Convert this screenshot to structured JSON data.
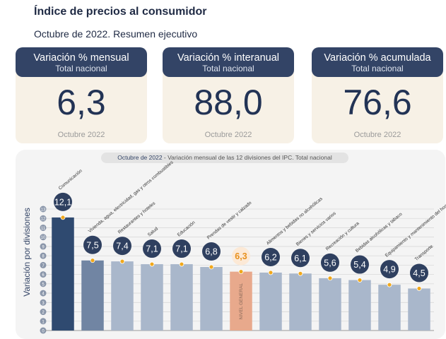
{
  "header": {
    "title": "Índice de precios al consumidor",
    "subtitle": "Octubre de 2022. Resumen ejecutivo"
  },
  "cards": [
    {
      "title": "Variación % mensual",
      "scope": "Total nacional",
      "value": "6,3",
      "period": "Octubre 2022"
    },
    {
      "title": "Variación % interanual",
      "scope": "Total nacional",
      "value": "88,0",
      "period": "Octubre 2022"
    },
    {
      "title": "Variación % acumulada",
      "scope": "Total nacional",
      "value": "76,6",
      "period": "Octubre 2022"
    }
  ],
  "colors": {
    "header_navy": "#334466",
    "bar_highlight": "#2f4a70",
    "bar_default": "#a9b7cb",
    "bar_general": "#e8a98c",
    "marker": "#f0a81c"
  },
  "chart_data": {
    "type": "bar",
    "title_prefix": "Octubre de 2022",
    "title": "Variación mensual de las 12 divisiones del IPC. Total nacional",
    "ylabel": "Variación por divisiones",
    "ylim": [
      0,
      13
    ],
    "yticks": [
      "0",
      "1",
      "2",
      "3",
      "4",
      "5",
      "6",
      "7",
      "8",
      "9",
      "10",
      "11",
      "12",
      "13"
    ],
    "grid": true,
    "categories": [
      "Comunicación",
      "Vivienda, agua, electricidad, gas y otros combustibles",
      "Restaurantes y hoteles",
      "Salud",
      "Educación",
      "Prendas de vestir y calzado",
      "NIVEL GENERAL",
      "Alimentos y bebidas no alcohólicas",
      "Bienes y servicios varios",
      "Recreación y cultura",
      "Bebidas alcohólicas y tabaco",
      "Equipamiento y mantenimiento del hogar",
      "Transporte"
    ],
    "values": [
      12.1,
      7.5,
      7.4,
      7.1,
      7.1,
      6.8,
      6.3,
      6.2,
      6.1,
      5.6,
      5.4,
      4.9,
      4.5
    ],
    "value_labels": [
      "12,1",
      "7,5",
      "7,4",
      "7,1",
      "7,1",
      "6,8",
      "6,3",
      "6,2",
      "6,1",
      "5,6",
      "5,4",
      "4,9",
      "4,5"
    ],
    "general_index": 6
  }
}
